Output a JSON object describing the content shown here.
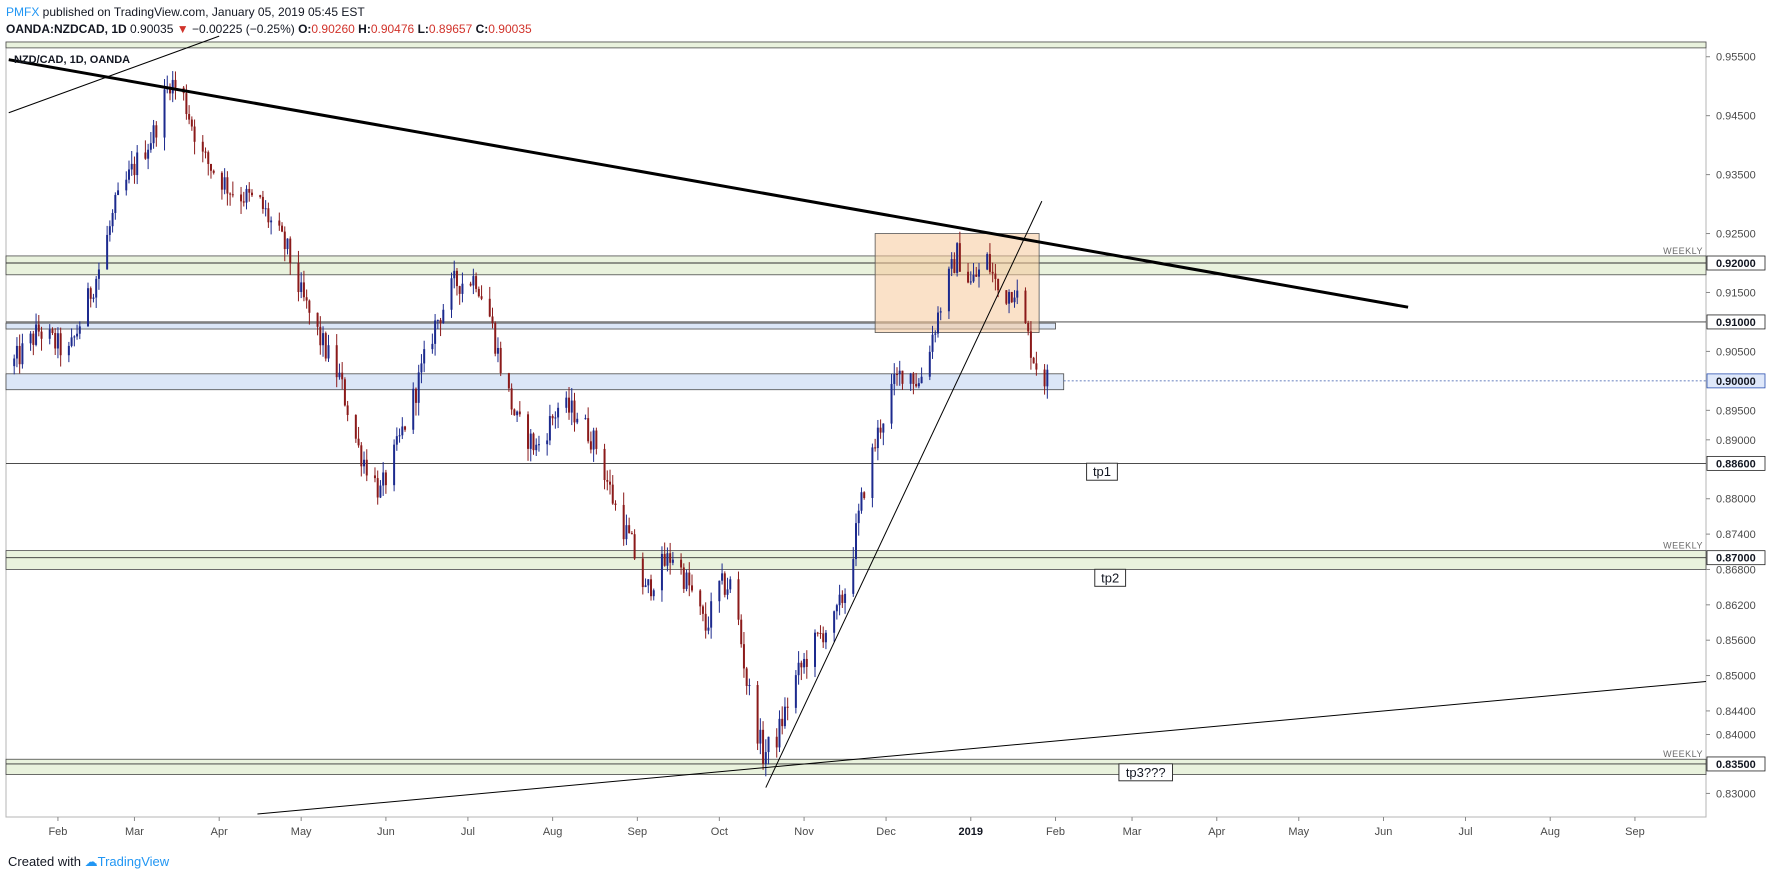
{
  "header": {
    "publisher": "PMFX",
    "published_text": " published on TradingView.com, January 05, 2019 05:45 EST"
  },
  "ohlc": {
    "symbol": "OANDA:NZDCAD, 1D",
    "last": "0.90035",
    "change": "−0.00225 (−0.25%)",
    "o_label": "O:",
    "o_value": "0.90260",
    "h_label": "H:",
    "h_value": "0.90476",
    "l_label": "L:",
    "l_value": "0.89657",
    "c_label": "C:",
    "c_value": "0.90035"
  },
  "footer": {
    "created_with": "Created with",
    "brand": "TradingView"
  },
  "colors": {
    "up_candle": "#1c2a8e",
    "down_candle": "#8b1a1a",
    "zone_green": "#e9f2dd",
    "zone_blue": "#dbe6f7",
    "orange_box": "#f6c89a",
    "trendline": "#000000",
    "accent": "#2196f3",
    "down_text": "#d1332b"
  },
  "chart_data": {
    "type": "candlestick",
    "title": "NZD/CAD, 1D, OANDA",
    "x_tick_labels": [
      "Feb",
      "Mar",
      "Apr",
      "May",
      "Jun",
      "Jul",
      "Aug",
      "Sep",
      "Oct",
      "Nov",
      "Dec",
      "2019",
      "Feb",
      "Mar",
      "Apr",
      "May",
      "Jun",
      "Jul",
      "Aug",
      "Sep"
    ],
    "x_tick_dates": [
      "2018-02-01",
      "2018-03-01",
      "2018-04-01",
      "2018-05-01",
      "2018-06-01",
      "2018-07-01",
      "2018-08-01",
      "2018-09-01",
      "2018-10-01",
      "2018-11-01",
      "2018-12-01",
      "2019-01-01",
      "2019-02-01",
      "2019-03-01",
      "2019-04-01",
      "2019-05-01",
      "2019-06-01",
      "2019-07-01",
      "2019-08-01",
      "2019-09-01"
    ],
    "x_range": [
      "2018-01-13",
      "2019-09-27"
    ],
    "y_tick_labels": [
      "0.95500",
      "0.94500",
      "0.93500",
      "0.92500",
      "0.91500",
      "0.90500",
      "0.89500",
      "0.89000",
      "0.88000",
      "0.87400",
      "0.86800",
      "0.86200",
      "0.85600",
      "0.85000",
      "0.84400",
      "0.84000",
      "0.83000"
    ],
    "y_range": [
      0.826,
      0.9575
    ],
    "highlighted_levels": [
      {
        "value": "0.92000",
        "label": "0.92000"
      },
      {
        "value": "0.91000",
        "label": "0.91000"
      },
      {
        "value": "0.90000",
        "label": "0.90000"
      },
      {
        "value": "0.88600",
        "label": "0.88600"
      },
      {
        "value": "0.87000",
        "label": "0.87000"
      },
      {
        "value": "0.83500",
        "label": "0.83500"
      }
    ],
    "weekly_label": "WEEKLY",
    "annotations": [
      "tp1",
      "tp2",
      "tp3???"
    ],
    "price_path": [
      [
        "2018-01-15",
        0.9025
      ],
      [
        "2018-01-25",
        0.9085
      ],
      [
        "2018-02-05",
        0.9045
      ],
      [
        "2018-02-16",
        0.919
      ],
      [
        "2018-02-22",
        0.9295
      ],
      [
        "2018-02-28",
        0.9355
      ],
      [
        "2018-03-08",
        0.942
      ],
      [
        "2018-03-14",
        0.951
      ],
      [
        "2018-03-19",
        0.948
      ],
      [
        "2018-03-26",
        0.938
      ],
      [
        "2018-04-05",
        0.9325
      ],
      [
        "2018-04-16",
        0.93
      ],
      [
        "2018-04-26",
        0.922
      ],
      [
        "2018-05-01",
        0.9145
      ],
      [
        "2018-05-08",
        0.907
      ],
      [
        "2018-05-15",
        0.9005
      ],
      [
        "2018-05-22",
        0.8885
      ],
      [
        "2018-05-30",
        0.881
      ],
      [
        "2018-06-05",
        0.8885
      ],
      [
        "2018-06-12",
        0.8985
      ],
      [
        "2018-06-19",
        0.9095
      ],
      [
        "2018-06-26",
        0.9165
      ],
      [
        "2018-07-04",
        0.9175
      ],
      [
        "2018-07-09",
        0.911
      ],
      [
        "2018-07-14",
        0.9005
      ],
      [
        "2018-07-19",
        0.893
      ],
      [
        "2018-07-26",
        0.8885
      ],
      [
        "2018-08-03",
        0.8955
      ],
      [
        "2018-08-10",
        0.8945
      ],
      [
        "2018-08-17",
        0.889
      ],
      [
        "2018-08-24",
        0.8785
      ],
      [
        "2018-08-30",
        0.872
      ],
      [
        "2018-09-04",
        0.864
      ],
      [
        "2018-09-09",
        0.868
      ],
      [
        "2018-09-14",
        0.8705
      ],
      [
        "2018-09-20",
        0.865
      ],
      [
        "2018-09-26",
        0.858
      ],
      [
        "2018-10-01",
        0.865
      ],
      [
        "2018-10-06",
        0.8655
      ],
      [
        "2018-10-11",
        0.849
      ],
      [
        "2018-10-17",
        0.8365
      ],
      [
        "2018-10-22",
        0.8395
      ],
      [
        "2018-10-29",
        0.8495
      ],
      [
        "2018-11-03",
        0.854
      ],
      [
        "2018-11-08",
        0.8575
      ],
      [
        "2018-11-12",
        0.859
      ],
      [
        "2018-11-16",
        0.8645
      ],
      [
        "2018-11-19",
        0.8715
      ],
      [
        "2018-11-23",
        0.882
      ],
      [
        "2018-11-28",
        0.891
      ],
      [
        "2018-12-03",
        0.8985
      ],
      [
        "2018-12-08",
        0.9025
      ],
      [
        "2018-12-13",
        0.8995
      ],
      [
        "2018-12-16",
        0.9045
      ],
      [
        "2018-12-22",
        0.9145
      ],
      [
        "2018-12-27",
        0.9215
      ],
      [
        "2019-01-01",
        0.9165
      ],
      [
        "2019-01-07",
        0.9205
      ],
      [
        "2019-01-12",
        0.914
      ],
      [
        "2019-01-17",
        0.916
      ],
      [
        "2019-01-21",
        0.909
      ],
      [
        "2019-01-24",
        0.904
      ],
      [
        "2019-01-27",
        0.9005
      ],
      [
        "2019-01-29",
        0.90035
      ]
    ]
  }
}
